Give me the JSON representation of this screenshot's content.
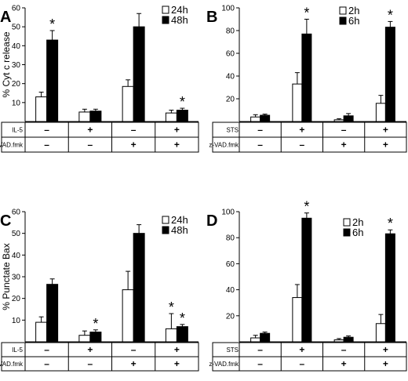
{
  "symbols": {
    "plus": "+",
    "minus": "–",
    "star": "*"
  },
  "chart_data": [
    {
      "panel": "A",
      "type": "bar",
      "ylabel": "% Cyt c release",
      "ylim": [
        0,
        60
      ],
      "yticks": [
        10,
        20,
        30,
        40,
        50,
        60
      ],
      "series": [
        {
          "name": "24h",
          "color": "#ffffff",
          "values": [
            13,
            5,
            18.5,
            4.5
          ],
          "errors": [
            2.5,
            1.5,
            3.5,
            1.5
          ]
        },
        {
          "name": "48h",
          "color": "#000000",
          "values": [
            43,
            5.5,
            50,
            6
          ],
          "errors": [
            5,
            1,
            7,
            1
          ]
        }
      ],
      "significance": [
        [
          false,
          true
        ],
        [
          false,
          false
        ],
        [
          false,
          false
        ],
        [
          false,
          true
        ]
      ],
      "treatments": [
        {
          "label": "IL-5",
          "values": [
            "-",
            "+",
            "-",
            "+"
          ]
        },
        {
          "label": "z-VAD.fmk",
          "values": [
            "-",
            "-",
            "+",
            "+"
          ]
        }
      ]
    },
    {
      "panel": "B",
      "type": "bar",
      "ylabel": "",
      "ylim": [
        0,
        100
      ],
      "yticks": [
        20,
        40,
        60,
        80,
        100
      ],
      "series": [
        {
          "name": "2h",
          "color": "#ffffff",
          "values": [
            4,
            33,
            1.5,
            16
          ],
          "errors": [
            2,
            10,
            1,
            7
          ]
        },
        {
          "name": "6h",
          "color": "#000000",
          "values": [
            5.5,
            77,
            5,
            83
          ],
          "errors": [
            1,
            13,
            2,
            5
          ]
        }
      ],
      "significance": [
        [
          false,
          false
        ],
        [
          false,
          true
        ],
        [
          false,
          false
        ],
        [
          false,
          true
        ]
      ],
      "treatments": [
        {
          "label": "STS",
          "values": [
            "-",
            "+",
            "-",
            "+"
          ]
        },
        {
          "label": "z-VAD.fmk",
          "values": [
            "-",
            "-",
            "+",
            "+"
          ]
        }
      ]
    },
    {
      "panel": "C",
      "type": "bar",
      "ylabel": "% Punctate Bax",
      "ylim": [
        0,
        60
      ],
      "yticks": [
        10,
        20,
        30,
        40,
        50,
        60
      ],
      "series": [
        {
          "name": "24h",
          "color": "#ffffff",
          "values": [
            9,
            3,
            24,
            6
          ],
          "errors": [
            2.5,
            2,
            8.5,
            7
          ]
        },
        {
          "name": "48h",
          "color": "#000000",
          "values": [
            26.5,
            4.5,
            50,
            7
          ],
          "errors": [
            2.5,
            1,
            4,
            1
          ]
        }
      ],
      "significance": [
        [
          false,
          false
        ],
        [
          false,
          true
        ],
        [
          false,
          false
        ],
        [
          true,
          true
        ]
      ],
      "treatments": [
        {
          "label": "IL-5",
          "values": [
            "-",
            "+",
            "-",
            "+"
          ]
        },
        {
          "label": "z-VAD.fmk",
          "values": [
            "-",
            "-",
            "+",
            "+"
          ]
        }
      ]
    },
    {
      "panel": "D",
      "type": "bar",
      "ylabel": "",
      "ylim": [
        0,
        100
      ],
      "yticks": [
        20,
        40,
        60,
        80,
        100
      ],
      "series": [
        {
          "name": "2h",
          "color": "#ffffff",
          "values": [
            3,
            34,
            1.5,
            14
          ],
          "errors": [
            2,
            10,
            1,
            7
          ]
        },
        {
          "name": "6h",
          "color": "#000000",
          "values": [
            6.5,
            95,
            3.5,
            83
          ],
          "errors": [
            1,
            4,
            1,
            3
          ]
        }
      ],
      "significance": [
        [
          false,
          false
        ],
        [
          false,
          true
        ],
        [
          false,
          false
        ],
        [
          false,
          true
        ]
      ],
      "treatments": [
        {
          "label": "STS",
          "values": [
            "-",
            "+",
            "-",
            "+"
          ]
        },
        {
          "label": "z-VAD.fmk",
          "values": [
            "-",
            "-",
            "+",
            "+"
          ]
        }
      ]
    }
  ]
}
